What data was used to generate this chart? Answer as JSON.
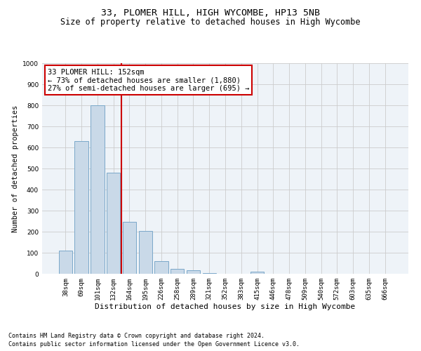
{
  "title": "33, PLOMER HILL, HIGH WYCOMBE, HP13 5NB",
  "subtitle": "Size of property relative to detached houses in High Wycombe",
  "xlabel": "Distribution of detached houses by size in High Wycombe",
  "ylabel": "Number of detached properties",
  "categories": [
    "38sqm",
    "69sqm",
    "101sqm",
    "132sqm",
    "164sqm",
    "195sqm",
    "226sqm",
    "258sqm",
    "289sqm",
    "321sqm",
    "352sqm",
    "383sqm",
    "415sqm",
    "446sqm",
    "478sqm",
    "509sqm",
    "540sqm",
    "572sqm",
    "603sqm",
    "635sqm",
    "666sqm"
  ],
  "values": [
    110,
    630,
    800,
    480,
    248,
    205,
    60,
    25,
    17,
    5,
    0,
    0,
    10,
    0,
    0,
    0,
    0,
    0,
    0,
    0,
    0
  ],
  "bar_color": "#c9d9e8",
  "bar_edgecolor": "#7aa8c9",
  "vline_x": 3.5,
  "vline_color": "#cc0000",
  "annotation_text": "33 PLOMER HILL: 152sqm\n← 73% of detached houses are smaller (1,880)\n27% of semi-detached houses are larger (695) →",
  "annotation_box_color": "#ffffff",
  "annotation_box_edgecolor": "#cc0000",
  "ylim": [
    0,
    1000
  ],
  "yticks": [
    0,
    100,
    200,
    300,
    400,
    500,
    600,
    700,
    800,
    900,
    1000
  ],
  "grid_color": "#cccccc",
  "bg_color": "#eef3f8",
  "footer1": "Contains HM Land Registry data © Crown copyright and database right 2024.",
  "footer2": "Contains public sector information licensed under the Open Government Licence v3.0.",
  "title_fontsize": 9.5,
  "subtitle_fontsize": 8.5,
  "xlabel_fontsize": 8,
  "ylabel_fontsize": 7.5,
  "tick_fontsize": 6.5,
  "annotation_fontsize": 7.5,
  "footer_fontsize": 6
}
